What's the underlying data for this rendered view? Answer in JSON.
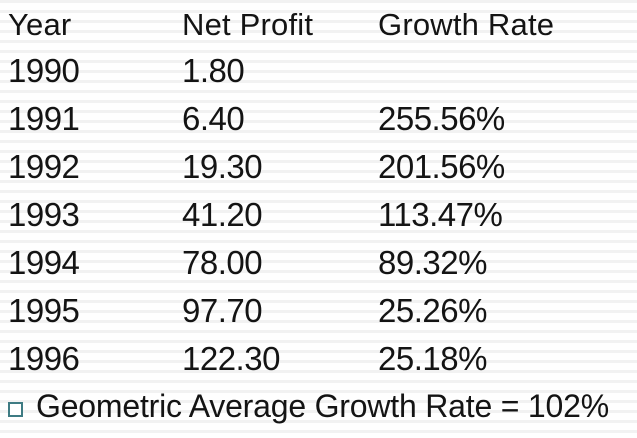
{
  "slide": {
    "colors": {
      "background": "#ffffff",
      "stripe": "#f2f2f2",
      "text": "#141414",
      "bullet_border": "#3e7b83"
    },
    "table": {
      "headers": {
        "year": "Year",
        "net_profit": "Net Profit",
        "growth_rate": "Growth Rate"
      },
      "rows": [
        {
          "year": "1990",
          "net_profit": "1.80",
          "growth_rate": ""
        },
        {
          "year": "1991",
          "net_profit": "6.40",
          "growth_rate": "255.56%"
        },
        {
          "year": "1992",
          "net_profit": "19.30",
          "growth_rate": "201.56%"
        },
        {
          "year": "1993",
          "net_profit": "41.20",
          "growth_rate": "113.47%"
        },
        {
          "year": "1994",
          "net_profit": "78.00",
          "growth_rate": "89.32%"
        },
        {
          "year": "1995",
          "net_profit": "97.70",
          "growth_rate": "25.26%"
        },
        {
          "year": "1996",
          "net_profit": "122.30",
          "growth_rate": "25.18%"
        }
      ]
    },
    "bullet_note": {
      "text": "Geometric Average Growth Rate = 102%"
    }
  }
}
